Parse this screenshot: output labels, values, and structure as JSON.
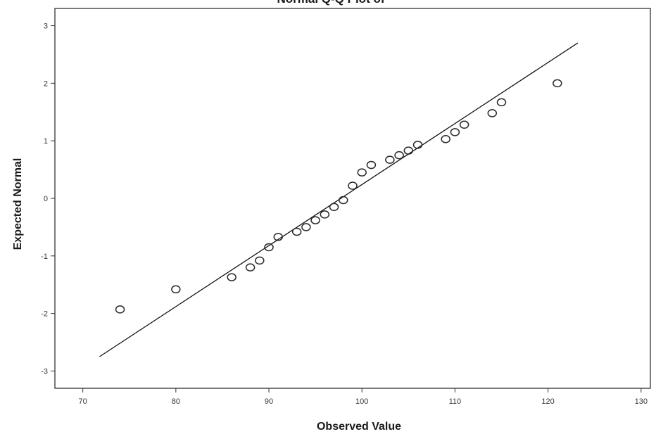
{
  "chart_data": {
    "type": "scatter",
    "title": "Normal Q-Q Plot of",
    "xlabel": "Observed Value",
    "ylabel": "Expected Normal",
    "xlim": [
      67,
      131
    ],
    "ylim": [
      -3.3,
      3.3
    ],
    "xticks": [
      70,
      80,
      90,
      100,
      110,
      120,
      130
    ],
    "yticks": [
      3,
      2,
      1,
      0,
      -1,
      -2,
      -3
    ],
    "grid": false,
    "reference_line": {
      "x": [
        71.8,
        123.2
      ],
      "y": [
        -2.75,
        2.7
      ]
    },
    "points": [
      {
        "x": 74,
        "y": -1.93
      },
      {
        "x": 80,
        "y": -1.58
      },
      {
        "x": 86,
        "y": -1.37
      },
      {
        "x": 88,
        "y": -1.2
      },
      {
        "x": 89,
        "y": -1.08
      },
      {
        "x": 90,
        "y": -0.85
      },
      {
        "x": 91,
        "y": -0.67
      },
      {
        "x": 93,
        "y": -0.58
      },
      {
        "x": 94,
        "y": -0.5
      },
      {
        "x": 95,
        "y": -0.38
      },
      {
        "x": 96,
        "y": -0.28
      },
      {
        "x": 97,
        "y": -0.15
      },
      {
        "x": 98,
        "y": -0.03
      },
      {
        "x": 99,
        "y": 0.22
      },
      {
        "x": 100,
        "y": 0.45
      },
      {
        "x": 101,
        "y": 0.58
      },
      {
        "x": 103,
        "y": 0.67
      },
      {
        "x": 104,
        "y": 0.75
      },
      {
        "x": 105,
        "y": 0.83
      },
      {
        "x": 106,
        "y": 0.93
      },
      {
        "x": 109,
        "y": 1.03
      },
      {
        "x": 110,
        "y": 1.15
      },
      {
        "x": 111,
        "y": 1.28
      },
      {
        "x": 114,
        "y": 1.48
      },
      {
        "x": 115,
        "y": 1.67
      },
      {
        "x": 121,
        "y": 2.0
      }
    ]
  }
}
